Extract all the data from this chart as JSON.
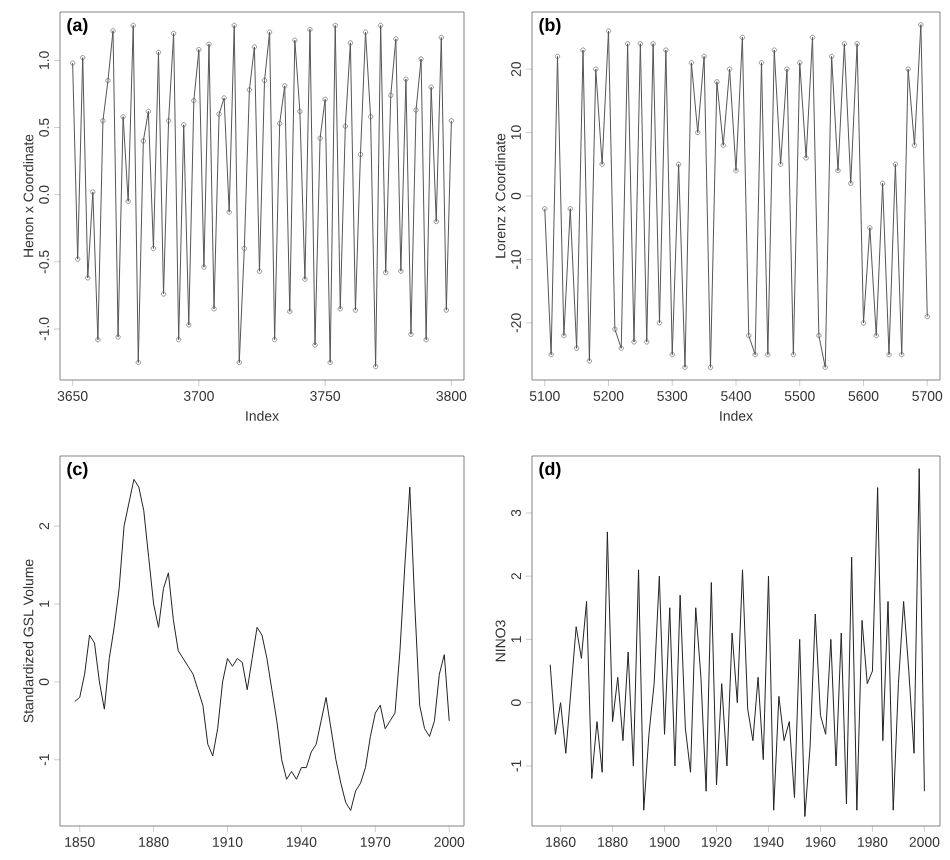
{
  "chart_data": [
    {
      "type": "line",
      "annotations": [
        "(a)"
      ],
      "xlabel": "Index",
      "ylabel": "Henon x Coordinate",
      "marker": "circle",
      "line_style": "solid",
      "xlim": [
        3645,
        3805
      ],
      "ylim": [
        -1.38,
        1.36
      ],
      "xticks": [
        3650,
        3700,
        3750,
        3800
      ],
      "yticks": [
        {
          "value": -1,
          "label": "-1.0"
        },
        {
          "value": -0.5,
          "label": "-0.5"
        },
        {
          "value": 0,
          "label": "0.0"
        },
        {
          "value": 0.5,
          "label": "0.5"
        },
        {
          "value": 1,
          "label": "1.0"
        }
      ],
      "x": [
        3650,
        3652,
        3654,
        3656,
        3658,
        3660,
        3662,
        3664,
        3666,
        3668,
        3670,
        3672,
        3674,
        3676,
        3678,
        3680,
        3682,
        3684,
        3686,
        3688,
        3690,
        3692,
        3694,
        3696,
        3698,
        3700,
        3702,
        3704,
        3706,
        3708,
        3710,
        3712,
        3714,
        3716,
        3718,
        3720,
        3722,
        3724,
        3726,
        3728,
        3730,
        3732,
        3734,
        3736,
        3738,
        3740,
        3742,
        3744,
        3746,
        3748,
        3750,
        3752,
        3754,
        3756,
        3758,
        3760,
        3762,
        3764,
        3766,
        3768,
        3770,
        3772,
        3774,
        3776,
        3778,
        3780,
        3782,
        3784,
        3786,
        3788,
        3790,
        3792,
        3794,
        3796,
        3798,
        3800
      ],
      "series": [
        {
          "color": "#555555",
          "values": [
            0.98,
            -0.48,
            1.02,
            -0.62,
            0.02,
            -1.08,
            0.55,
            0.85,
            1.22,
            -1.06,
            0.58,
            -0.05,
            1.26,
            -1.25,
            0.4,
            0.62,
            -0.4,
            1.06,
            -0.74,
            0.55,
            1.2,
            -1.08,
            0.52,
            -0.97,
            0.7,
            1.08,
            -0.54,
            1.12,
            -0.85,
            0.6,
            0.72,
            -0.13,
            1.26,
            -1.25,
            -0.4,
            0.78,
            1.1,
            -0.57,
            0.85,
            1.21,
            -1.08,
            0.53,
            0.81,
            -0.87,
            1.15,
            0.62,
            -0.63,
            1.23,
            -1.12,
            0.42,
            0.71,
            -1.25,
            1.26,
            -0.85,
            0.51,
            1.13,
            -0.86,
            0.3,
            1.21,
            0.58,
            -1.28,
            1.26,
            -0.58,
            0.74,
            1.16,
            -0.57,
            0.86,
            -1.04,
            0.63,
            1.01,
            -1.08,
            0.8,
            -0.2,
            1.17,
            -0.86,
            0.55
          ]
        }
      ]
    },
    {
      "type": "line",
      "annotations": [
        "(b)"
      ],
      "xlabel": "Index",
      "ylabel": "Lorenz x Coordinate",
      "marker": "circle",
      "line_style": "solid",
      "xlim": [
        5080,
        5720
      ],
      "ylim": [
        -29,
        29
      ],
      "xticks": [
        5100,
        5200,
        5300,
        5400,
        5500,
        5600,
        5700
      ],
      "yticks": [
        -20,
        -10,
        0,
        10,
        20
      ],
      "x": [
        5100,
        5110,
        5120,
        5130,
        5140,
        5150,
        5160,
        5170,
        5180,
        5190,
        5200,
        5210,
        5220,
        5230,
        5240,
        5250,
        5260,
        5270,
        5280,
        5290,
        5300,
        5310,
        5320,
        5330,
        5340,
        5350,
        5360,
        5370,
        5380,
        5390,
        5400,
        5410,
        5420,
        5430,
        5440,
        5450,
        5460,
        5470,
        5480,
        5490,
        5500,
        5510,
        5520,
        5530,
        5540,
        5550,
        5560,
        5570,
        5580,
        5590,
        5600,
        5610,
        5620,
        5630,
        5640,
        5650,
        5660,
        5670,
        5680,
        5690,
        5700
      ],
      "series": [
        {
          "color": "#555555",
          "values": [
            -2,
            -25,
            22,
            -22,
            -2,
            -24,
            23,
            -26,
            20,
            5,
            26,
            -21,
            -24,
            24,
            -23,
            24,
            -23,
            24,
            -20,
            23,
            -25,
            5,
            -27,
            21,
            10,
            22,
            -27,
            18,
            8,
            20,
            4,
            25,
            -22,
            -25,
            21,
            -25,
            23,
            5,
            20,
            -25,
            21,
            6,
            25,
            -22,
            -27,
            22,
            4,
            24,
            2,
            24,
            -20,
            -5,
            -22,
            2,
            -25,
            5,
            -25,
            20,
            8,
            27,
            -19
          ]
        }
      ]
    },
    {
      "type": "line",
      "annotations": [
        "(c)"
      ],
      "ylabel": "Standardized GSL Volume",
      "line_style": "solid",
      "xlim": [
        1842,
        2006
      ],
      "ylim": [
        -1.85,
        2.9
      ],
      "xticks": [
        1850,
        1880,
        1910,
        1940,
        1970,
        2000
      ],
      "yticks": [
        -1,
        0,
        1,
        2
      ],
      "x": [
        1848,
        1850,
        1852,
        1854,
        1856,
        1858,
        1860,
        1862,
        1864,
        1866,
        1868,
        1870,
        1872,
        1874,
        1876,
        1878,
        1880,
        1882,
        1884,
        1886,
        1888,
        1890,
        1892,
        1894,
        1896,
        1898,
        1900,
        1902,
        1904,
        1906,
        1908,
        1910,
        1912,
        1914,
        1916,
        1918,
        1920,
        1922,
        1924,
        1926,
        1928,
        1930,
        1932,
        1934,
        1936,
        1938,
        1940,
        1942,
        1944,
        1946,
        1948,
        1950,
        1952,
        1954,
        1956,
        1958,
        1960,
        1962,
        1964,
        1966,
        1968,
        1970,
        1972,
        1974,
        1976,
        1978,
        1980,
        1982,
        1984,
        1986,
        1988,
        1990,
        1992,
        1994,
        1996,
        1998,
        2000
      ],
      "series": [
        {
          "color": "#222222",
          "values": [
            -0.25,
            -0.2,
            0.1,
            0.6,
            0.5,
            0.0,
            -0.35,
            0.3,
            0.7,
            1.2,
            2.0,
            2.3,
            2.6,
            2.5,
            2.2,
            1.6,
            1.0,
            0.7,
            1.2,
            1.4,
            0.8,
            0.4,
            0.3,
            0.2,
            0.1,
            -0.1,
            -0.3,
            -0.8,
            -0.95,
            -0.6,
            0.0,
            0.3,
            0.2,
            0.3,
            0.25,
            -0.1,
            0.3,
            0.7,
            0.6,
            0.3,
            -0.1,
            -0.5,
            -1.0,
            -1.25,
            -1.15,
            -1.25,
            -1.1,
            -1.1,
            -0.9,
            -0.8,
            -0.5,
            -0.2,
            -0.6,
            -1.0,
            -1.3,
            -1.55,
            -1.65,
            -1.4,
            -1.3,
            -1.1,
            -0.7,
            -0.4,
            -0.3,
            -0.6,
            -0.5,
            -0.4,
            0.4,
            1.5,
            2.5,
            1.0,
            -0.3,
            -0.6,
            -0.7,
            -0.5,
            0.1,
            0.35,
            -0.5
          ]
        }
      ]
    },
    {
      "type": "line",
      "annotations": [
        "(d)"
      ],
      "ylabel": "NINO3",
      "line_style": "solid",
      "xlim": [
        1849,
        2006
      ],
      "ylim": [
        -1.95,
        3.9
      ],
      "xticks": [
        1860,
        1880,
        1900,
        1920,
        1940,
        1960,
        1980,
        2000
      ],
      "yticks": [
        -1,
        0,
        1,
        2,
        3
      ],
      "x": [
        1856,
        1858,
        1860,
        1862,
        1864,
        1866,
        1868,
        1870,
        1872,
        1874,
        1876,
        1878,
        1880,
        1882,
        1884,
        1886,
        1888,
        1890,
        1892,
        1894,
        1896,
        1898,
        1900,
        1902,
        1904,
        1906,
        1908,
        1910,
        1912,
        1914,
        1916,
        1918,
        1920,
        1922,
        1924,
        1926,
        1928,
        1930,
        1932,
        1934,
        1936,
        1938,
        1940,
        1942,
        1944,
        1946,
        1948,
        1950,
        1952,
        1954,
        1956,
        1958,
        1960,
        1962,
        1964,
        1966,
        1968,
        1970,
        1972,
        1974,
        1976,
        1978,
        1980,
        1982,
        1984,
        1986,
        1988,
        1990,
        1992,
        1994,
        1996,
        1998,
        2000
      ],
      "series": [
        {
          "color": "#222222",
          "values": [
            0.6,
            -0.5,
            0.0,
            -0.8,
            0.2,
            1.2,
            0.7,
            1.6,
            -1.2,
            -0.3,
            -1.1,
            2.7,
            -0.3,
            0.4,
            -0.6,
            0.8,
            -1.0,
            2.1,
            -1.7,
            -0.5,
            0.3,
            2.0,
            -0.5,
            1.5,
            -1.0,
            1.7,
            -0.4,
            -1.1,
            1.5,
            0.4,
            -1.4,
            1.9,
            -1.3,
            0.3,
            -1.0,
            1.1,
            0.0,
            2.1,
            -0.1,
            -0.6,
            0.4,
            -0.9,
            2.0,
            -1.7,
            0.1,
            -0.6,
            -0.3,
            -1.5,
            1.0,
            -1.8,
            -0.7,
            1.4,
            -0.2,
            -0.5,
            1.0,
            -1.0,
            1.1,
            -1.6,
            2.3,
            -1.7,
            1.3,
            0.3,
            0.5,
            3.4,
            -0.6,
            1.6,
            -1.7,
            0.3,
            1.6,
            0.5,
            -0.8,
            3.7,
            -1.4
          ]
        }
      ]
    }
  ]
}
